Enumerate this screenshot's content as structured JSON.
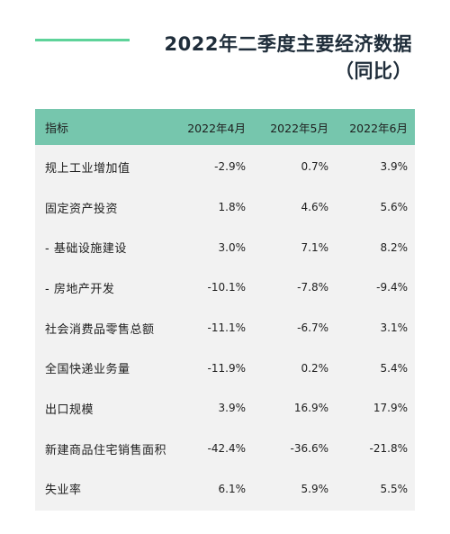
{
  "title": {
    "line1": "2022年二季度主要经济数据",
    "line2": "（同比）"
  },
  "colors": {
    "accent_line": "#5ed39a",
    "header_bg": "#76c6ad",
    "table_bg": "#f2f2f2",
    "title_text": "#1f2d3a"
  },
  "table": {
    "headers": [
      "指标",
      "2022年4月",
      "2022年5月",
      "2022年6月"
    ],
    "rows": [
      [
        "规上工业增加值",
        "-2.9%",
        "0.7%",
        "3.9%"
      ],
      [
        "固定资产投资",
        "1.8%",
        "4.6%",
        "5.6%"
      ],
      [
        "-  基础设施建设",
        "3.0%",
        "7.1%",
        "8.2%"
      ],
      [
        "-  房地产开发",
        "-10.1%",
        "-7.8%",
        "-9.4%"
      ],
      [
        "社会消费品零售总额",
        "-11.1%",
        "-6.7%",
        "3.1%"
      ],
      [
        "全国快递业务量",
        "-11.9%",
        "0.2%",
        "5.4%"
      ],
      [
        "出口规模",
        "3.9%",
        "16.9%",
        "17.9%"
      ],
      [
        "新建商品住宅销售面积",
        "-42.4%",
        "-36.6%",
        "-21.8%"
      ],
      [
        "失业率",
        "6.1%",
        "5.9%",
        "5.5%"
      ]
    ]
  }
}
